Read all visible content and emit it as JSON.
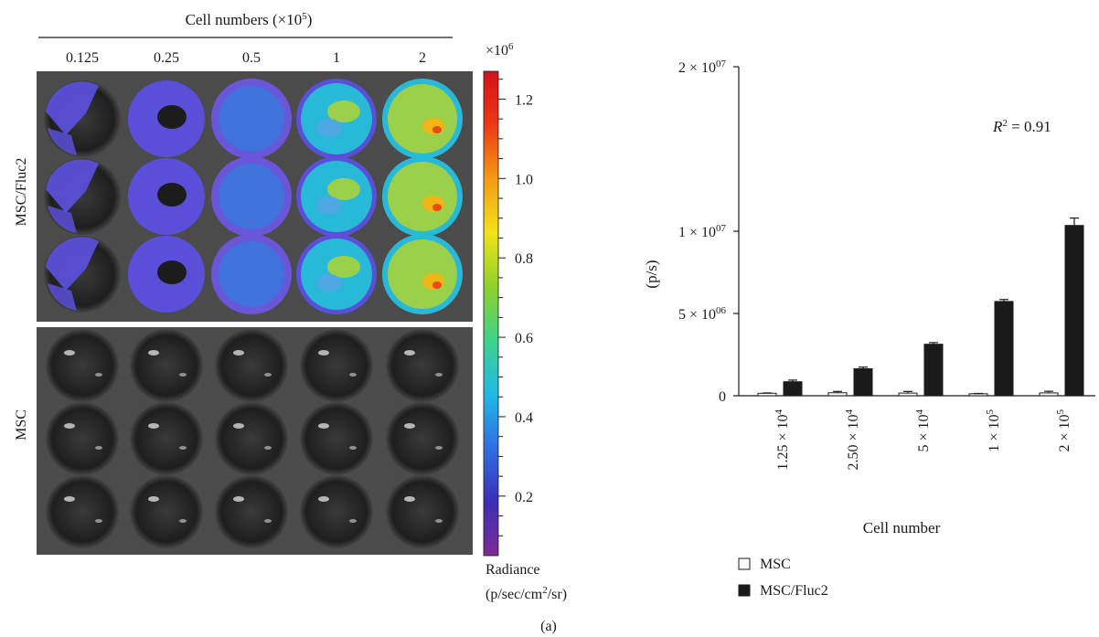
{
  "figure": {
    "panel_label": "(a)",
    "imaging": {
      "header": {
        "prefix": "Cell numbers (×10",
        "sup": "5",
        "suffix": ")"
      },
      "columns": [
        "0.125",
        "0.25",
        "0.5",
        "1",
        "2"
      ],
      "row_labels": [
        "MSC/Fluc2",
        "MSC"
      ],
      "colorbar": {
        "multiplier_base": "×10",
        "multiplier_exp": "6",
        "ticks": [
          "1.2",
          "1.0",
          "0.8",
          "0.6",
          "0.4",
          "0.2"
        ],
        "label_line1": "Radiance",
        "label_line2_prefix": "(p/sec/cm",
        "label_line2_sup": "2",
        "label_line2_suffix": "/sr)",
        "colors": [
          "#7f2a95",
          "#3b2fb5",
          "#2f6fe0",
          "#21b8e8",
          "#3fd28a",
          "#8ed22a",
          "#f2e21a",
          "#f59a16",
          "#ec3a14",
          "#d4101a"
        ]
      },
      "colors": {
        "signal_low": "#5a4fd8",
        "signal_mid": "#28b9d9",
        "signal_high": "#9bd14a",
        "signal_peak": "#f1b515",
        "plate_bg": "#4a4a4a",
        "well_dark": "#262626"
      }
    },
    "chart_data": {
      "type": "bar",
      "categories": [
        {
          "base": "1.25 × 10",
          "exp": "4"
        },
        {
          "base": "2.50 × 10",
          "exp": "4"
        },
        {
          "base": "5 × 10",
          "exp": "4"
        },
        {
          "base": "1 × 10",
          "exp": "5"
        },
        {
          "base": "2 × 10",
          "exp": "5"
        }
      ],
      "series": [
        {
          "name": "MSC",
          "values": [
            150000,
            180000,
            160000,
            120000,
            170000
          ],
          "errors": [
            20000,
            80000,
            100000,
            20000,
            100000
          ],
          "fill": "#ffffff"
        },
        {
          "name": "MSC/Fluc2",
          "values": [
            850000,
            1640000,
            3130000,
            5730000,
            10350000
          ],
          "errors": [
            100000,
            100000,
            100000,
            120000,
            450000
          ],
          "fill": "#1a1a1a"
        }
      ],
      "ylim": [
        0,
        20000000
      ],
      "yticks": [
        {
          "value": 20000000,
          "base": "2 × 10",
          "exp": "07"
        },
        {
          "value": 10000000,
          "base": "1 × 10",
          "exp": "07"
        },
        {
          "value": 5000000,
          "base": "5 × 10",
          "exp": "06"
        },
        {
          "value": 0,
          "base": "0",
          "exp": ""
        }
      ],
      "ylabel": "(p/s)",
      "xlabel": "Cell number",
      "annotation": {
        "r": "R",
        "sup": "2",
        "rest": " = 0.91"
      },
      "legend_placement": "bottom-left",
      "grid": false
    }
  }
}
